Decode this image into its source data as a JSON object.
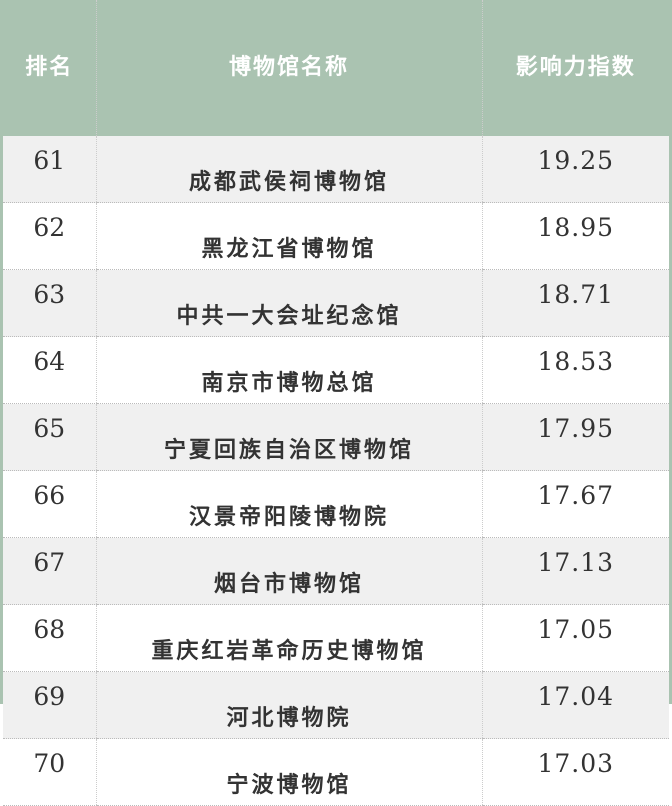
{
  "header": {
    "rank": "排名",
    "name": "博物馆名称",
    "score": "影响力指数"
  },
  "colors": {
    "header_bg": "#aac3b1",
    "row_alt": "#f0f0f0"
  },
  "rows": [
    {
      "rank": "61",
      "name": "成都武侯祠博物馆",
      "score": "19.25"
    },
    {
      "rank": "62",
      "name": "黑龙江省博物馆",
      "score": "18.95"
    },
    {
      "rank": "63",
      "name": "中共一大会址纪念馆",
      "score": "18.71"
    },
    {
      "rank": "64",
      "name": "南京市博物总馆",
      "score": "18.53"
    },
    {
      "rank": "65",
      "name": "宁夏回族自治区博物馆",
      "score": "17.95"
    },
    {
      "rank": "66",
      "name": "汉景帝阳陵博物院",
      "score": "17.67"
    },
    {
      "rank": "67",
      "name": "烟台市博物馆",
      "score": "17.13"
    },
    {
      "rank": "68",
      "name": "重庆红岩革命历史博物馆",
      "score": "17.05"
    },
    {
      "rank": "69",
      "name": "河北博物院",
      "score": "17.04"
    },
    {
      "rank": "70",
      "name": "宁波博物馆",
      "score": "17.03"
    }
  ]
}
